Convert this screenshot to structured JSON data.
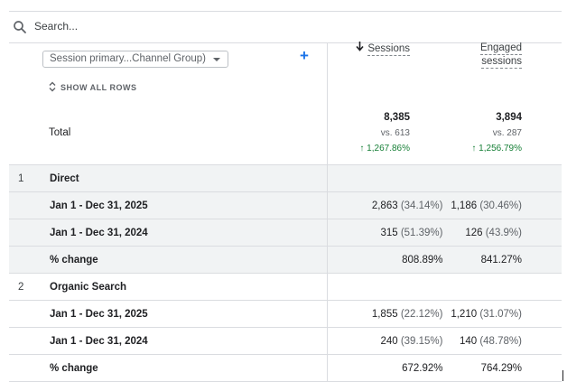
{
  "search": {
    "placeholder": "Search..."
  },
  "dimension": {
    "label": "Session primary...Channel Group)",
    "add_label": "+"
  },
  "show_all_rows": "SHOW ALL ROWS",
  "columns": {
    "sessions": "Sessions",
    "engaged_line1": "Engaged",
    "engaged_line2": "sessions"
  },
  "total": {
    "label": "Total",
    "sessions": {
      "value": "8,385",
      "vs": "vs. 613",
      "change": "1,267.86%"
    },
    "engaged": {
      "value": "3,894",
      "vs": "vs. 287",
      "change": "1,256.79%"
    }
  },
  "rows": [
    {
      "index": "1",
      "name": "Direct",
      "sub": [
        {
          "label": "Jan 1 - Dec 31, 2025",
          "s_val": "2,863",
          "s_pct": "(34.14%)",
          "e_val": "1,186",
          "e_pct": "(30.46%)"
        },
        {
          "label": "Jan 1 - Dec 31, 2024",
          "s_val": "315",
          "s_pct": "(51.39%)",
          "e_val": "126",
          "e_pct": "(43.9%)"
        },
        {
          "label": "% change",
          "s_val": "808.89%",
          "s_pct": "",
          "e_val": "841.27%",
          "e_pct": ""
        }
      ]
    },
    {
      "index": "2",
      "name": "Organic Search",
      "sub": [
        {
          "label": "Jan 1 - Dec 31, 2025",
          "s_val": "1,855",
          "s_pct": "(22.12%)",
          "e_val": "1,210",
          "e_pct": "(31.07%)"
        },
        {
          "label": "Jan 1 - Dec 31, 2024",
          "s_val": "240",
          "s_pct": "(39.15%)",
          "e_val": "140",
          "e_pct": "(48.78%)"
        },
        {
          "label": "% change",
          "s_val": "672.92%",
          "s_pct": "",
          "e_val": "764.29%",
          "e_pct": ""
        }
      ]
    }
  ]
}
